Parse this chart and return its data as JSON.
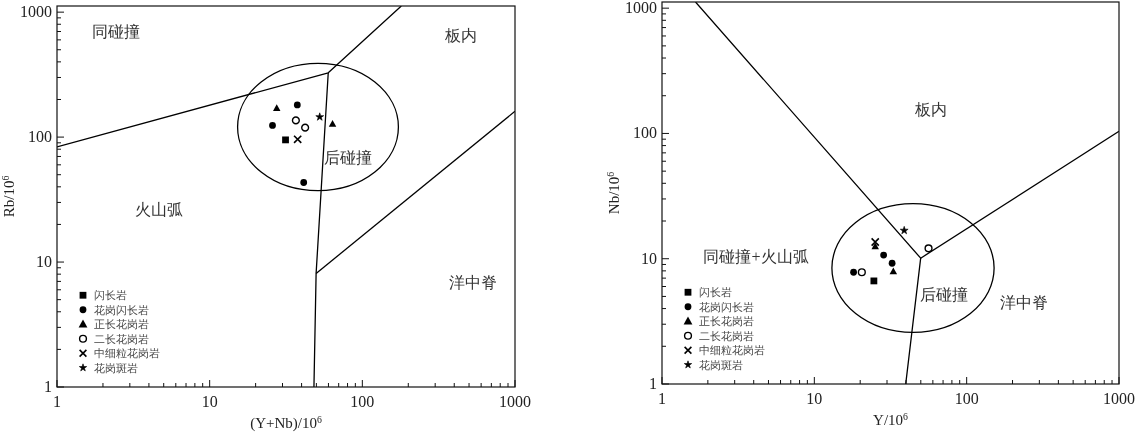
{
  "chart_data": [
    {
      "type": "scatter",
      "xlabel": "(Y+Nb)/10$^{6}$",
      "ylabel": "Rb/10$^{6}$",
      "log": "xy",
      "xlim": [
        1,
        1000
      ],
      "ylim": [
        1,
        1120
      ],
      "xticks": [
        1,
        {
          "value": 2,
          "label": null
        },
        {
          "value": 3,
          "label": null
        },
        {
          "value": 4,
          "label": null
        },
        {
          "value": 5,
          "label": null
        },
        {
          "value": 6,
          "label": null
        },
        {
          "value": 7,
          "label": null
        },
        {
          "value": 8,
          "label": null
        },
        {
          "value": 9,
          "label": null
        },
        10,
        {
          "value": 20,
          "label": null
        },
        {
          "value": 30,
          "label": null
        },
        {
          "value": 40,
          "label": null
        },
        {
          "value": 50,
          "label": null
        },
        {
          "value": 60,
          "label": null
        },
        {
          "value": 70,
          "label": null
        },
        {
          "value": 80,
          "label": null
        },
        {
          "value": 90,
          "label": null
        },
        100,
        {
          "value": 200,
          "label": null
        },
        {
          "value": 300,
          "label": null
        },
        {
          "value": 400,
          "label": null
        },
        {
          "value": 500,
          "label": null
        },
        {
          "value": 600,
          "label": null
        },
        {
          "value": 700,
          "label": null
        },
        {
          "value": 800,
          "label": null
        },
        {
          "value": 900,
          "label": null
        },
        1000
      ],
      "yticks": [
        1,
        {
          "value": 2,
          "label": null
        },
        {
          "value": 3,
          "label": null
        },
        {
          "value": 4,
          "label": null
        },
        {
          "value": 5,
          "label": null
        },
        {
          "value": 6,
          "label": null
        },
        {
          "value": 7,
          "label": null
        },
        {
          "value": 8,
          "label": null
        },
        {
          "value": 9,
          "label": null
        },
        10,
        {
          "value": 20,
          "label": null
        },
        {
          "value": 30,
          "label": null
        },
        {
          "value": 40,
          "label": null
        },
        {
          "value": 50,
          "label": null
        },
        {
          "value": 60,
          "label": null
        },
        {
          "value": 70,
          "label": null
        },
        {
          "value": 80,
          "label": null
        },
        {
          "value": 90,
          "label": null
        },
        100,
        {
          "value": 200,
          "label": null
        },
        {
          "value": 300,
          "label": null
        },
        {
          "value": 400,
          "label": null
        },
        {
          "value": 500,
          "label": null
        },
        {
          "value": 600,
          "label": null
        },
        {
          "value": 700,
          "label": null
        },
        {
          "value": 800,
          "label": null
        },
        {
          "value": 900,
          "label": null
        },
        1000
      ],
      "grid": false,
      "legend": "bottom left",
      "series": [
        {
          "name": "闪长岩",
          "color": "#000000",
          "marker": "square",
          "x": [
            31.4
          ],
          "values": [
            95
          ]
        },
        {
          "name": "花岗闪长岩",
          "color": "#000000",
          "marker": "circle",
          "x": [
            37.5,
            25.8,
            41.3
          ],
          "values": [
            181,
            124,
            43.3
          ]
        },
        {
          "name": "正长花岗岩",
          "color": "#000000",
          "marker": "triangle",
          "x": [
            27.5,
            63.8
          ],
          "values": [
            170,
            127
          ]
        },
        {
          "name": "二长花岗岩",
          "color": "#000000",
          "marker": "circle",
          "x": [
            36.7,
            42.2
          ],
          "values": [
            136,
            119
          ]
        },
        {
          "name": "中细粒花岗岩",
          "color": "#000000",
          "marker": "cross",
          "x": [
            37.7
          ],
          "values": [
            96
          ]
        },
        {
          "name": "花岗斑岩",
          "color": "#000000",
          "marker": "star",
          "x": [
            52.6
          ],
          "values": [
            145
          ]
        },
        {
          "type": "line",
          "color": "#000000",
          "marker": "none",
          "x": [
            1,
            59.8,
            180
          ],
          "values": [
            83.6,
            327,
            1120
          ]
        },
        {
          "type": "line",
          "color": "#000000",
          "marker": "none",
          "x": [
            59.8,
            49.8,
            48.2
          ],
          "values": [
            327,
            8.1,
            1
          ]
        },
        {
          "type": "line",
          "color": "#000000",
          "marker": "none",
          "x": [
            49.8,
            1000
          ],
          "values": [
            8.1,
            161
          ]
        }
      ],
      "annotations": [
        "同碰撞",
        "板内",
        "后碰撞",
        "火山弧",
        "洋中脊"
      ]
    },
    {
      "type": "scatter",
      "xlabel": "Y/10$^{6}$",
      "ylabel": "Nb/10$^{6}$",
      "log": "xy",
      "xlim": [
        1,
        1000
      ],
      "ylim": [
        1,
        1120
      ],
      "xticks": [
        1,
        {
          "value": 2,
          "label": null
        },
        {
          "value": 3,
          "label": null
        },
        {
          "value": 4,
          "label": null
        },
        {
          "value": 5,
          "label": null
        },
        {
          "value": 6,
          "label": null
        },
        {
          "value": 7,
          "label": null
        },
        {
          "value": 8,
          "label": null
        },
        {
          "value": 9,
          "label": null
        },
        10,
        {
          "value": 20,
          "label": null
        },
        {
          "value": 30,
          "label": null
        },
        {
          "value": 40,
          "label": null
        },
        {
          "value": 50,
          "label": null
        },
        {
          "value": 60,
          "label": null
        },
        {
          "value": 70,
          "label": null
        },
        {
          "value": 80,
          "label": null
        },
        {
          "value": 90,
          "label": null
        },
        100,
        {
          "value": 200,
          "label": null
        },
        {
          "value": 300,
          "label": null
        },
        {
          "value": 400,
          "label": null
        },
        {
          "value": 500,
          "label": null
        },
        {
          "value": 600,
          "label": null
        },
        {
          "value": 700,
          "label": null
        },
        {
          "value": 800,
          "label": null
        },
        {
          "value": 900,
          "label": null
        },
        1000
      ],
      "yticks": [
        1,
        {
          "value": 2,
          "label": null
        },
        {
          "value": 3,
          "label": null
        },
        {
          "value": 4,
          "label": null
        },
        {
          "value": 5,
          "label": null
        },
        {
          "value": 6,
          "label": null
        },
        {
          "value": 7,
          "label": null
        },
        {
          "value": 8,
          "label": null
        },
        {
          "value": 9,
          "label": null
        },
        10,
        {
          "value": 20,
          "label": null
        },
        {
          "value": 30,
          "label": null
        },
        {
          "value": 40,
          "label": null
        },
        {
          "value": 50,
          "label": null
        },
        {
          "value": 60,
          "label": null
        },
        {
          "value": 70,
          "label": null
        },
        {
          "value": 80,
          "label": null
        },
        {
          "value": 90,
          "label": null
        },
        100,
        {
          "value": 200,
          "label": null
        },
        {
          "value": 300,
          "label": null
        },
        {
          "value": 400,
          "label": null
        },
        {
          "value": 500,
          "label": null
        },
        {
          "value": 600,
          "label": null
        },
        {
          "value": 700,
          "label": null
        },
        {
          "value": 800,
          "label": null
        },
        {
          "value": 900,
          "label": null
        },
        1000
      ],
      "grid": false,
      "legend": "bottom left",
      "series": [
        {
          "name": "闪长岩",
          "color": "#000000",
          "marker": "square",
          "x": [
            24.6
          ],
          "values": [
            6.65
          ]
        },
        {
          "name": "花岗闪长岩",
          "color": "#000000",
          "marker": "circle",
          "x": [
            18.1,
            28.5,
            32.4
          ],
          "values": [
            7.8,
            10.7,
            9.2
          ]
        },
        {
          "name": "正长花岗岩",
          "color": "#000000",
          "marker": "triangle",
          "x": [
            25.1,
            33.0
          ],
          "values": [
            12.5,
            7.9
          ]
        },
        {
          "name": "二长花岗岩",
          "color": "#000000",
          "marker": "circle",
          "x": [
            20.5,
            56.2
          ],
          "values": [
            7.8,
            12.1
          ]
        },
        {
          "name": "中细粒花岗岩",
          "color": "#000000",
          "marker": "cross",
          "x": [
            25.1
          ],
          "values": [
            13.6
          ]
        },
        {
          "name": "花岗斑岩",
          "color": "#000000",
          "marker": "star",
          "x": [
            38.9
          ],
          "values": [
            16.8
          ]
        },
        {
          "type": "line",
          "color": "#000000",
          "marker": "none",
          "x": [
            1.66,
            49.9,
            39.8
          ],
          "values": [
            1120,
            10.1,
            1
          ]
        },
        {
          "type": "line",
          "color": "#000000",
          "marker": "none",
          "x": [
            49.9,
            1000
          ],
          "values": [
            10.1,
            104
          ]
        }
      ],
      "annotations": [
        "板内",
        "同碰撞+火山弧",
        "后碰撞",
        "洋中脊"
      ]
    }
  ]
}
